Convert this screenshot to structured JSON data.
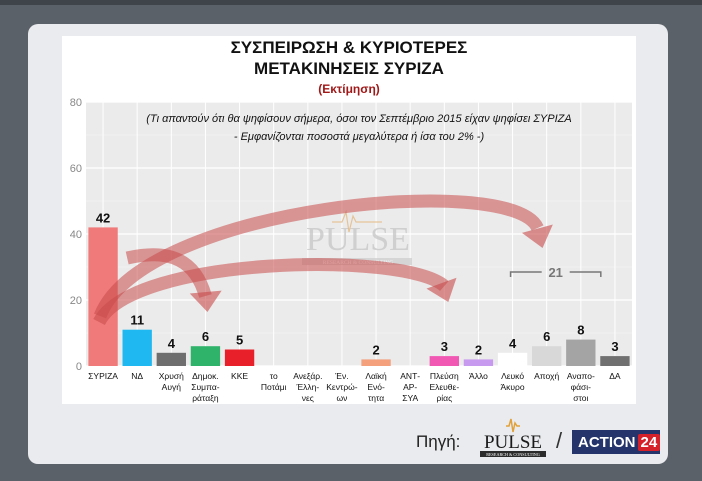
{
  "page": {
    "source_label": "Πηγή:",
    "slash": "/",
    "pulse_logo_text": "PULSE",
    "pulse_logo_sub": "RESEARCH & CONSULTING",
    "action_logo_text": "ACTION",
    "action_logo_num": "24"
  },
  "chart_data": {
    "type": "bar",
    "title_line1": "ΣΥΣΠΕΙΡΩΣΗ & ΚΥΡΙΟΤΕΡΕΣ",
    "title_line2": "ΜΕΤΑΚΙΝΗΣΕΙΣ ΣΥΡΙΖΑ",
    "subtitle": "(Εκτίμηση)",
    "note_line1": "(Τι απαντούν ότι θα ψηφίσουν σήμερα, όσοι τον Σεπτέμβριο 2015 είχαν ψηφίσει ΣΥΡΙΖΑ",
    "note_line2": "- Εμφανίζονται ποσοστά μεγαλύτερα ή ίσα του 2% -)",
    "ylim": [
      0,
      80
    ],
    "yticks": [
      0,
      20,
      40,
      60,
      80
    ],
    "grid": true,
    "watermark": "PULSE",
    "watermark_sub": "RESEARCH & CONSULTING",
    "bracket_label": "21",
    "categories": [
      {
        "label": [
          "ΣΥΡΙΖΑ"
        ],
        "value": 42,
        "color": "#f07a7a"
      },
      {
        "label": [
          "ΝΔ"
        ],
        "value": 11,
        "color": "#1fb8f0"
      },
      {
        "label": [
          "Χρυσή",
          "Αυγή"
        ],
        "value": 4,
        "color": "#6e6e6e"
      },
      {
        "label": [
          "Δημοκ.",
          "Συμπα-",
          "ράταξη"
        ],
        "value": 6,
        "color": "#2fb36b"
      },
      {
        "label": [
          "ΚΚΕ"
        ],
        "value": 5,
        "color": "#e8202a"
      },
      {
        "label": [
          "το",
          "Ποτάμι"
        ],
        "value": null,
        "color": "#999999"
      },
      {
        "label": [
          "Ανεξάρ.",
          "Έλλη-",
          "νες"
        ],
        "value": null,
        "color": "#999999"
      },
      {
        "label": [
          "Έν.",
          "Κεντρώ-",
          "ων"
        ],
        "value": null,
        "color": "#999999"
      },
      {
        "label": [
          "Λαϊκή",
          "Ενό-",
          "τητα"
        ],
        "value": 2,
        "color": "#f4a07c"
      },
      {
        "label": [
          "ΑΝΤ-",
          "ΑΡ-",
          "ΣΥΑ"
        ],
        "value": null,
        "color": "#999999"
      },
      {
        "label": [
          "Πλεύση",
          "Ελευθε-",
          "ρίας"
        ],
        "value": 3,
        "color": "#f058b4"
      },
      {
        "label": [
          "Άλλο"
        ],
        "value": 2,
        "color": "#c79af0"
      },
      {
        "label": [
          "Λευκό",
          "Άκυρο"
        ],
        "value": 4,
        "color": "#ffffff"
      },
      {
        "label": [
          "Αποχή"
        ],
        "value": 6,
        "color": "#d8d8d8"
      },
      {
        "label": [
          "Αναπο-",
          "φάσι-",
          "στοι"
        ],
        "value": 8,
        "color": "#a4a4a4"
      },
      {
        "label": [
          "ΔΑ"
        ],
        "value": 3,
        "color": "#707070"
      }
    ],
    "colors": {
      "plot_bg": "#ebebeb",
      "grid": "#ffffff",
      "arrow": "#c84a4a"
    }
  }
}
